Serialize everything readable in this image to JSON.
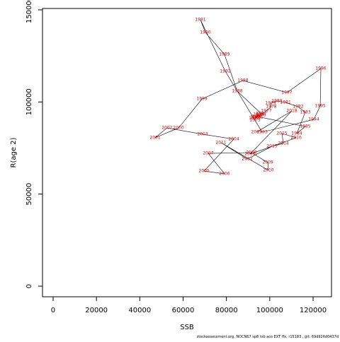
{
  "chart_data": {
    "type": "scatter",
    "x_label": "SSB",
    "y_label": "R(age 2)",
    "footer": "stockassessment.org, NOCN67 sp8 tsb aco EXT ffx, r15183 , git: 69d926d0437d",
    "color": "#e00000",
    "line_color": "#000000",
    "point_labels": [
      "1971",
      "1972",
      "1973",
      "1974",
      "1975",
      "1976",
      "1977",
      "1978",
      "1979",
      "1980",
      "1981",
      "1982",
      "1983",
      "1984",
      "1985",
      "1986",
      "1987",
      "1988",
      "1989",
      "1990",
      "1991",
      "1992",
      "1993",
      "1994",
      "1995",
      "1996",
      "1997",
      "1998",
      "1999",
      "2000",
      "2001",
      "2002",
      "2003",
      "2004",
      "2005",
      "2006",
      "2007",
      "2008",
      "2009",
      "2010",
      "2011",
      "2012",
      "2013",
      "2014",
      "2015",
      "2016",
      "2017",
      "2018",
      "2019"
    ],
    "x": [
      94500,
      92800,
      93200,
      93500,
      94800,
      95800,
      98400,
      100700,
      100400,
      103300,
      107300,
      113100,
      116400,
      112500,
      116400,
      94200,
      96100,
      85000,
      79100,
      70300,
      68000,
      79500,
      96500,
      120300,
      123300,
      123600,
      107900,
      87600,
      68700,
      57900,
      47100,
      52600,
      69000,
      83400,
      69700,
      79100,
      71600,
      91600,
      99100,
      99400,
      77500,
      89600,
      101000,
      106300,
      105600,
      112200,
      90900,
      110200,
      93900
    ],
    "values": [
      91700,
      91200,
      90100,
      91700,
      93200,
      92800,
      95100,
      97400,
      99300,
      100500,
      99700,
      97400,
      94400,
      82900,
      86700,
      92100,
      93600,
      105900,
      125800,
      137700,
      144600,
      116600,
      83600,
      90500,
      97800,
      118100,
      105100,
      111600,
      101600,
      85900,
      80600,
      85900,
      82500,
      79800,
      62500,
      61000,
      72100,
      72500,
      67100,
      62900,
      77900,
      69000,
      75900,
      77500,
      82900,
      80600,
      71700,
      95100,
      83600
    ],
    "xlim": [
      -4900,
      128500
    ],
    "ylim": [
      -5750,
      150750
    ],
    "xticks": [
      0,
      20000,
      40000,
      60000,
      80000,
      100000,
      120000
    ],
    "yticks": [
      0,
      50000,
      100000,
      150000
    ]
  }
}
